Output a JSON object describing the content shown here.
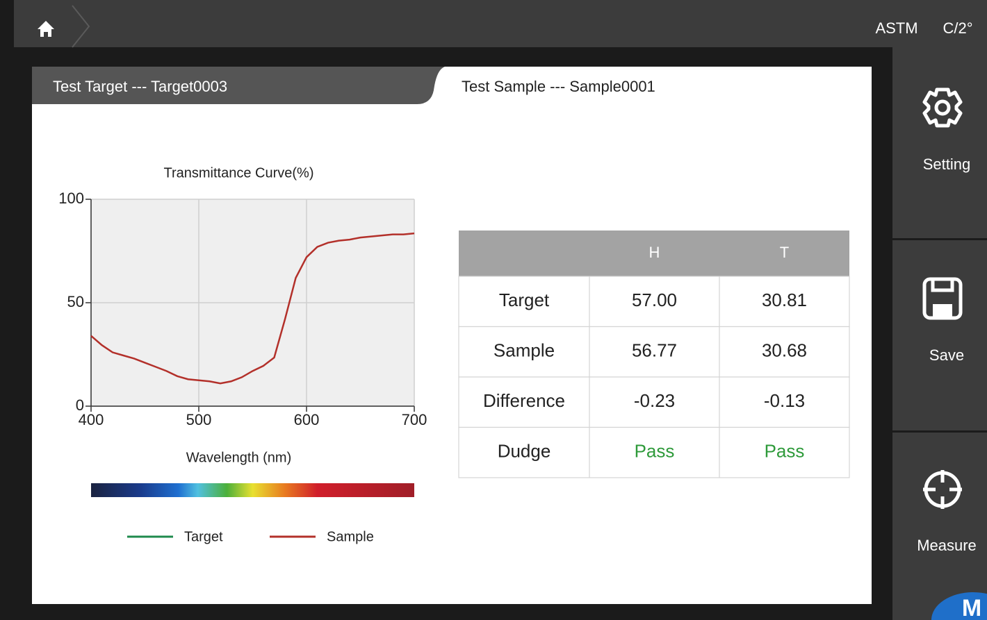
{
  "topbar": {
    "standard": "ASTM",
    "observer": "C/2°"
  },
  "tabs": [
    "Test Target --- Target0003",
    "Test Sample --- Sample0001"
  ],
  "chart_data": {
    "type": "line",
    "title": "Transmittance Curve(%)",
    "x_label": "Wavelength (nm)",
    "x": [
      400,
      410,
      420,
      430,
      440,
      450,
      460,
      470,
      480,
      490,
      500,
      510,
      520,
      530,
      540,
      550,
      560,
      570,
      580,
      590,
      600,
      610,
      620,
      630,
      640,
      650,
      660,
      670,
      680,
      690,
      700
    ],
    "series": [
      {
        "name": "Target",
        "color": "#1e8a4c",
        "values": [
          null,
          null,
          null,
          null,
          null,
          null,
          null,
          null,
          null,
          null,
          null,
          null,
          null,
          null,
          null,
          null,
          null,
          null,
          null,
          null,
          null,
          null,
          null,
          null,
          null,
          null,
          null,
          null,
          null,
          null,
          null
        ]
      },
      {
        "name": "Sample",
        "color": "#b3302a",
        "values": [
          34,
          29.5,
          26,
          24.5,
          23,
          21,
          19,
          17,
          14.5,
          13,
          12.5,
          12,
          11,
          12,
          14,
          17,
          19.5,
          23.5,
          42,
          62,
          72,
          77,
          79,
          80,
          80.5,
          81.5,
          82,
          82.5,
          83,
          83,
          83.5
        ]
      }
    ],
    "xlim": [
      400,
      700
    ],
    "xticks": [
      400,
      500,
      600,
      700
    ],
    "ylim": [
      0,
      100
    ],
    "yticks": [
      0,
      50,
      100
    ],
    "grid": true
  },
  "table": {
    "columns": [
      "H",
      "T"
    ],
    "rows": [
      {
        "label": "Target",
        "cells": [
          "57.00",
          "30.81"
        ]
      },
      {
        "label": "Sample",
        "cells": [
          "56.77",
          "30.68"
        ]
      },
      {
        "label": "Difference",
        "cells": [
          "-0.23",
          "-0.13"
        ]
      },
      {
        "label": "Dudge",
        "cells": [
          "Pass",
          "Pass"
        ]
      }
    ]
  },
  "sidebar": [
    "Setting",
    "Save",
    "Measure"
  ],
  "logo": "M"
}
